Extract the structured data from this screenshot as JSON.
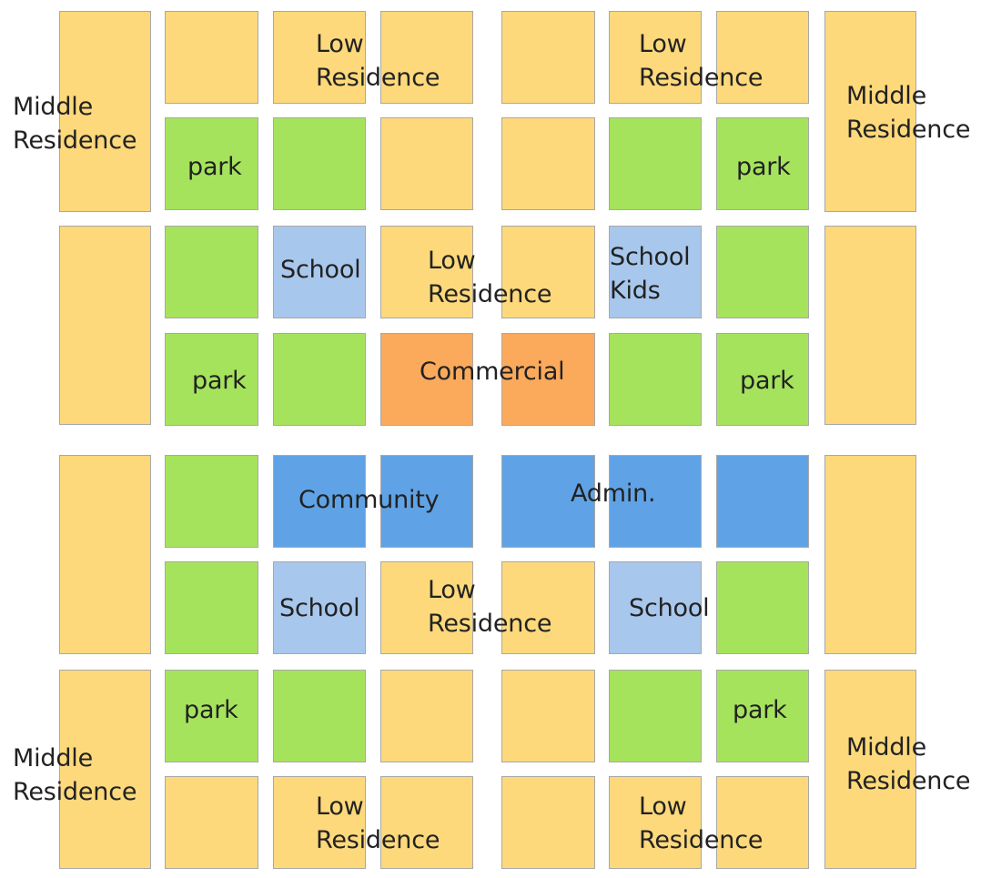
{
  "colors": {
    "low_residence": "#fdd97b",
    "middle_residence": "#fdd97b",
    "park": "#a6e35d",
    "school": "#a8c7ec",
    "commercial": "#fbaa5c",
    "community": "#5fa3e6",
    "admin": "#5fa3e6",
    "road": "#ffffff",
    "border": "#a8a8a8"
  },
  "labels": {
    "low_res_top_left": [
      "Low",
      "Residence"
    ],
    "low_res_top_right": [
      "Low",
      "Residence"
    ],
    "mid_res_top_left": [
      "Middle",
      "Residence"
    ],
    "mid_res_top_right": [
      "Middle",
      "Residence"
    ],
    "park_r2_left": "park",
    "park_r2_right": "park",
    "school_mid_left": "School",
    "low_res_center_upper": [
      "Low",
      "Residence"
    ],
    "school_kids": [
      "School",
      "Kids"
    ],
    "park_r4_left": "park",
    "commercial": "Commercial",
    "park_r4_right": "park",
    "community": "Community",
    "admin": "Admin.",
    "school_lower_left": "School",
    "low_res_center_lower": [
      "Low",
      "Residence"
    ],
    "school_lower_right": "School",
    "park_r7_left": "park",
    "park_r7_right": "park",
    "mid_res_bottom_left": [
      "Middle",
      "Residence"
    ],
    "mid_res_bottom_right": [
      "Middle",
      "Residence"
    ],
    "low_res_bottom_left": [
      "Low",
      "Residence"
    ],
    "low_res_bottom_right": [
      "Low",
      "Residence"
    ]
  }
}
